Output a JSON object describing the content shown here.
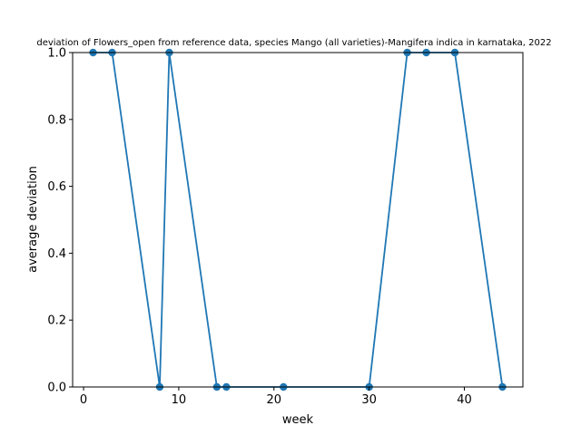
{
  "chart_data": {
    "type": "line",
    "title": "deviation of Flowers_open from reference data, species Mango (all varieties)-Mangifera indica in karnataka, 2022",
    "xlabel": "week",
    "ylabel": "average deviation",
    "xlim": [
      -1.15,
      46.15
    ],
    "ylim": [
      0,
      1
    ],
    "x_ticks": [
      0,
      10,
      20,
      30,
      40
    ],
    "y_ticks": [
      0.0,
      0.2,
      0.4,
      0.6,
      0.8,
      1.0
    ],
    "x_tick_labels": [
      "0",
      "10",
      "20",
      "30",
      "40"
    ],
    "y_tick_labels": [
      "0.0",
      "0.2",
      "0.4",
      "0.6",
      "0.8",
      "1.0"
    ],
    "grid": false,
    "legend": false,
    "series": [
      {
        "color": "#1f77b4",
        "marker": "circle",
        "x": [
          1,
          3,
          8,
          9,
          14,
          15,
          21,
          30,
          34,
          36,
          39,
          44
        ],
        "y": [
          1,
          1,
          0,
          1,
          0,
          0,
          0,
          0,
          1,
          1,
          1,
          0
        ]
      }
    ]
  }
}
